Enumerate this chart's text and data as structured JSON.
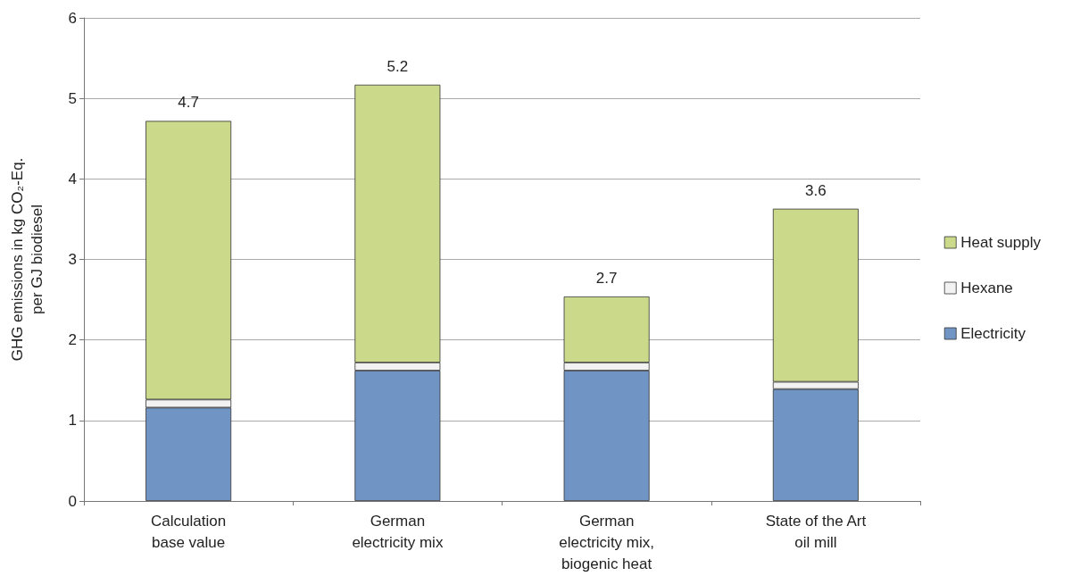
{
  "chart_data": {
    "type": "bar",
    "stacked": true,
    "ylabel": "GHG emissions in kg CO₂-Eq.\nper GJ biodiesel",
    "categories": [
      "Calculation\nbase value",
      "German\nelectricity mix",
      "German\nelectricity mix,\nbiogenic heat",
      "State of the Art\noil mill"
    ],
    "series": [
      {
        "name": "Electricity",
        "color": "#7094c4",
        "values": [
          1.16,
          1.62,
          1.62,
          1.39
        ]
      },
      {
        "name": "Hexane",
        "color": "#f2f2f2",
        "values": [
          0.1,
          0.1,
          0.1,
          0.09
        ]
      },
      {
        "name": "Heat supply",
        "color": "#cbd98a",
        "values": [
          3.46,
          3.45,
          0.82,
          2.15
        ]
      }
    ],
    "totals": [
      "4.7",
      "5.2",
      "2.7",
      "3.6"
    ],
    "ylim": [
      0,
      6
    ],
    "yticks": [
      0,
      1,
      2,
      3,
      4,
      5,
      6
    ],
    "grid": "y",
    "legend": "right"
  }
}
